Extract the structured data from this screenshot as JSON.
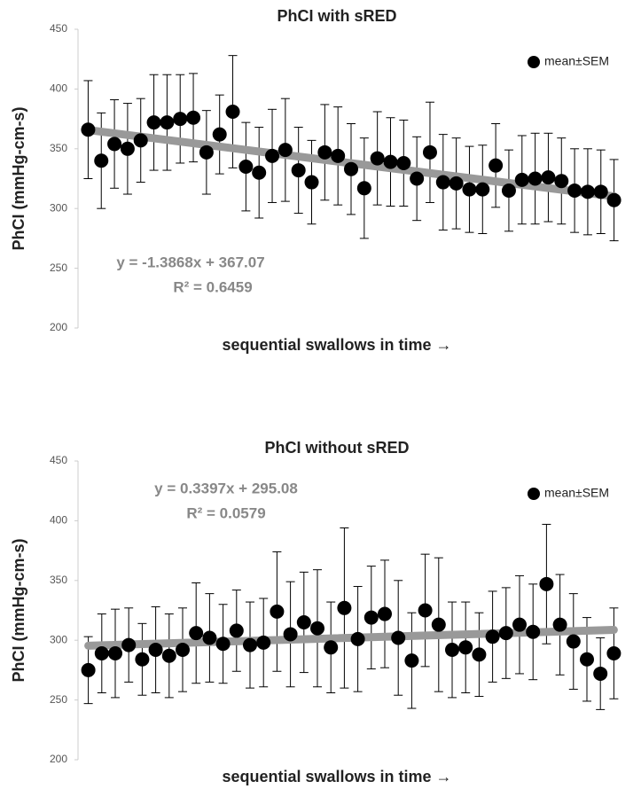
{
  "chart_data": [
    {
      "type": "scatter",
      "title": "PhCI with sRED",
      "x_label": "sequential swallows in time →",
      "y_label": "PhCI (mmHg-cm-s)",
      "xlim": [
        0.5,
        41.5
      ],
      "ylim": [
        200,
        450
      ],
      "yticks": [
        200,
        250,
        300,
        350,
        400,
        450
      ],
      "legend": "top-right",
      "series": [
        {
          "name": "mean±SEM",
          "color": "#000000",
          "x": [
            1,
            2,
            3,
            4,
            5,
            6,
            7,
            8,
            9,
            10,
            11,
            12,
            13,
            14,
            15,
            16,
            17,
            18,
            19,
            20,
            21,
            22,
            23,
            24,
            25,
            26,
            27,
            28,
            29,
            30,
            31,
            32,
            33,
            34,
            35,
            36,
            37,
            38,
            39,
            40,
            41
          ],
          "values": [
            366,
            340,
            354,
            350,
            357,
            372,
            372,
            375,
            376,
            347,
            362,
            381,
            335,
            330,
            344,
            349,
            332,
            322,
            347,
            344,
            333,
            317,
            342,
            339,
            338,
            325,
            347,
            322,
            321,
            316,
            316,
            336,
            315,
            324,
            325,
            326,
            323,
            315,
            314,
            314,
            307
          ],
          "errors": [
            41,
            40,
            37,
            38,
            35,
            40,
            40,
            37,
            37,
            35,
            33,
            47,
            37,
            38,
            39,
            43,
            36,
            35,
            40,
            41,
            38,
            42,
            39,
            37,
            36,
            35,
            42,
            40,
            38,
            36,
            37,
            35,
            34,
            37,
            38,
            37,
            36,
            35,
            36,
            35,
            34
          ]
        }
      ],
      "trend": {
        "color": "#999999",
        "slope": -1.3868,
        "intercept": 367.07,
        "equation": "y = -1.3868x + 367.07",
        "r2": "R² = 0.6459"
      }
    },
    {
      "type": "scatter",
      "title": "PhCI without sRED",
      "x_label": "sequential swallows in time →",
      "y_label": "PhCI (mmHg-cm-s)",
      "xlim": [
        0.5,
        40.5
      ],
      "ylim": [
        200,
        450
      ],
      "yticks": [
        200,
        250,
        300,
        350,
        400,
        450
      ],
      "legend": "top-right",
      "series": [
        {
          "name": "mean±SEM",
          "color": "#000000",
          "x": [
            1,
            2,
            3,
            4,
            5,
            6,
            7,
            8,
            9,
            10,
            11,
            12,
            13,
            14,
            15,
            16,
            17,
            18,
            19,
            20,
            21,
            22,
            23,
            24,
            25,
            26,
            27,
            28,
            29,
            30,
            31,
            32,
            33,
            34,
            35,
            36,
            37,
            38,
            39,
            40
          ],
          "values": [
            275,
            289,
            289,
            296,
            284,
            292,
            287,
            292,
            306,
            302,
            297,
            308,
            296,
            298,
            324,
            305,
            315,
            310,
            294,
            327,
            301,
            319,
            322,
            302,
            283,
            325,
            313,
            292,
            294,
            288,
            303,
            306,
            313,
            307,
            347,
            313,
            299,
            284,
            272,
            289
          ],
          "errors": [
            28,
            33,
            37,
            31,
            30,
            36,
            35,
            35,
            42,
            37,
            33,
            34,
            36,
            37,
            50,
            44,
            42,
            49,
            38,
            67,
            44,
            43,
            45,
            48,
            40,
            47,
            56,
            40,
            38,
            35,
            38,
            38,
            41,
            40,
            50,
            42,
            40,
            35,
            30,
            38
          ]
        }
      ],
      "trend": {
        "color": "#999999",
        "slope": 0.3397,
        "intercept": 295.08,
        "equation": "y = 0.3397x + 295.08",
        "r2": "R² = 0.0579"
      }
    }
  ]
}
